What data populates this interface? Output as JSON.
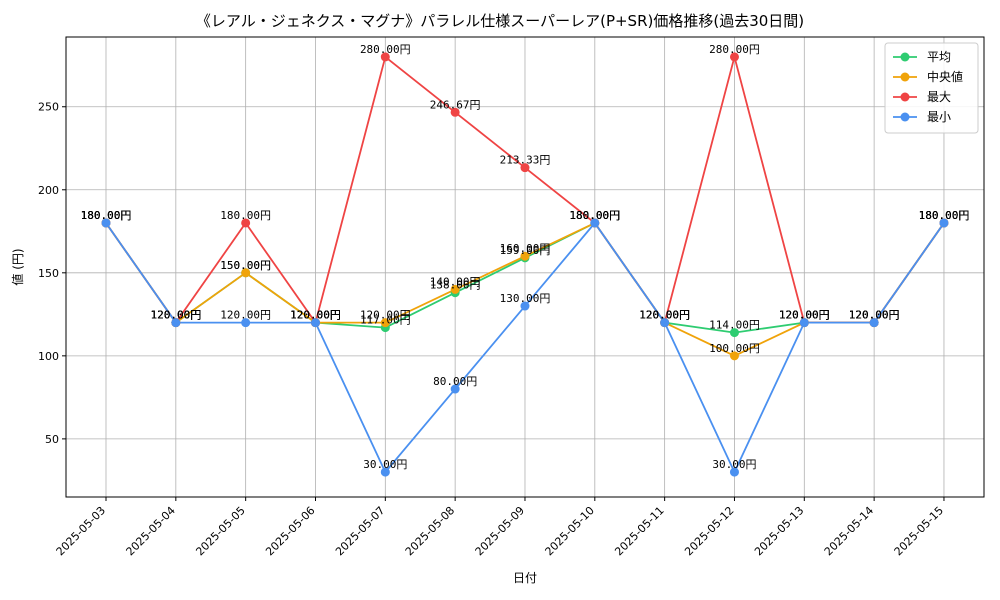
{
  "chart_data": {
    "type": "line",
    "title": "《レアル・ジェネクス・マグナ》パラレル仕様スーパーレア(P+SR)価格推移(過去30日間)",
    "xlabel": "日付",
    "ylabel": "値 (円)",
    "ylim": [
      15,
      292
    ],
    "yticks": [
      50,
      100,
      150,
      200,
      250
    ],
    "grid": true,
    "legend_position": "top-right",
    "label_suffix": "円",
    "categories": [
      "2025-05-03",
      "2025-05-04",
      "2025-05-05",
      "2025-05-06",
      "2025-05-07",
      "2025-05-08",
      "2025-05-09",
      "2025-05-10",
      "2025-05-11",
      "2025-05-12",
      "2025-05-13",
      "2025-05-14",
      "2025-05-15"
    ],
    "series": [
      {
        "name": "平均",
        "color": "#2ecc71",
        "values": [
          180,
          120,
          150,
          120,
          117,
          138,
          159,
          180,
          120,
          114,
          120,
          120,
          180
        ],
        "labels": [
          "180.00円",
          "120.00円",
          "150.00円",
          "120.00円",
          "117.00円",
          "138.00円",
          "159.00円",
          "180.00円",
          "120.00円",
          "114.00円",
          "120.00円",
          "120.00円",
          "180.00円"
        ]
      },
      {
        "name": "中央値",
        "color": "#f0a30a",
        "values": [
          180,
          120,
          150,
          120,
          120,
          140,
          160,
          180,
          120,
          100,
          120,
          120,
          180
        ],
        "labels": [
          "180.00円",
          "120.00円",
          "150.00円",
          "120.00円",
          "120.00円",
          "140.00円",
          "160.00円",
          "180.00円",
          "120.00円",
          "100.00円",
          "120.00円",
          "120.00円",
          "180.00円"
        ]
      },
      {
        "name": "最大",
        "color": "#ef4444",
        "values": [
          180,
          120,
          180,
          120,
          280,
          246.67,
          213.33,
          180,
          120,
          280,
          120,
          120,
          180
        ],
        "labels": [
          "180.00円",
          "120.00円",
          "180.00円",
          "120.00円",
          "280.00円",
          "246.67円",
          "213.33円",
          "180.00円",
          "120.00円",
          "280.00円",
          "120.00円",
          "120.00円",
          "180.00円"
        ]
      },
      {
        "name": "最小",
        "color": "#4a90f0",
        "values": [
          180,
          120,
          120,
          120,
          30,
          80,
          130,
          180,
          120,
          30,
          120,
          120,
          180
        ],
        "labels": [
          "180.00円",
          "120.00円",
          "120.00円",
          "120.00円",
          "30.00円",
          "80.00円",
          "130.00円",
          "180.00円",
          "120.00円",
          "30.00円",
          "120.00円",
          "120.00円",
          "180.00円"
        ]
      }
    ]
  }
}
